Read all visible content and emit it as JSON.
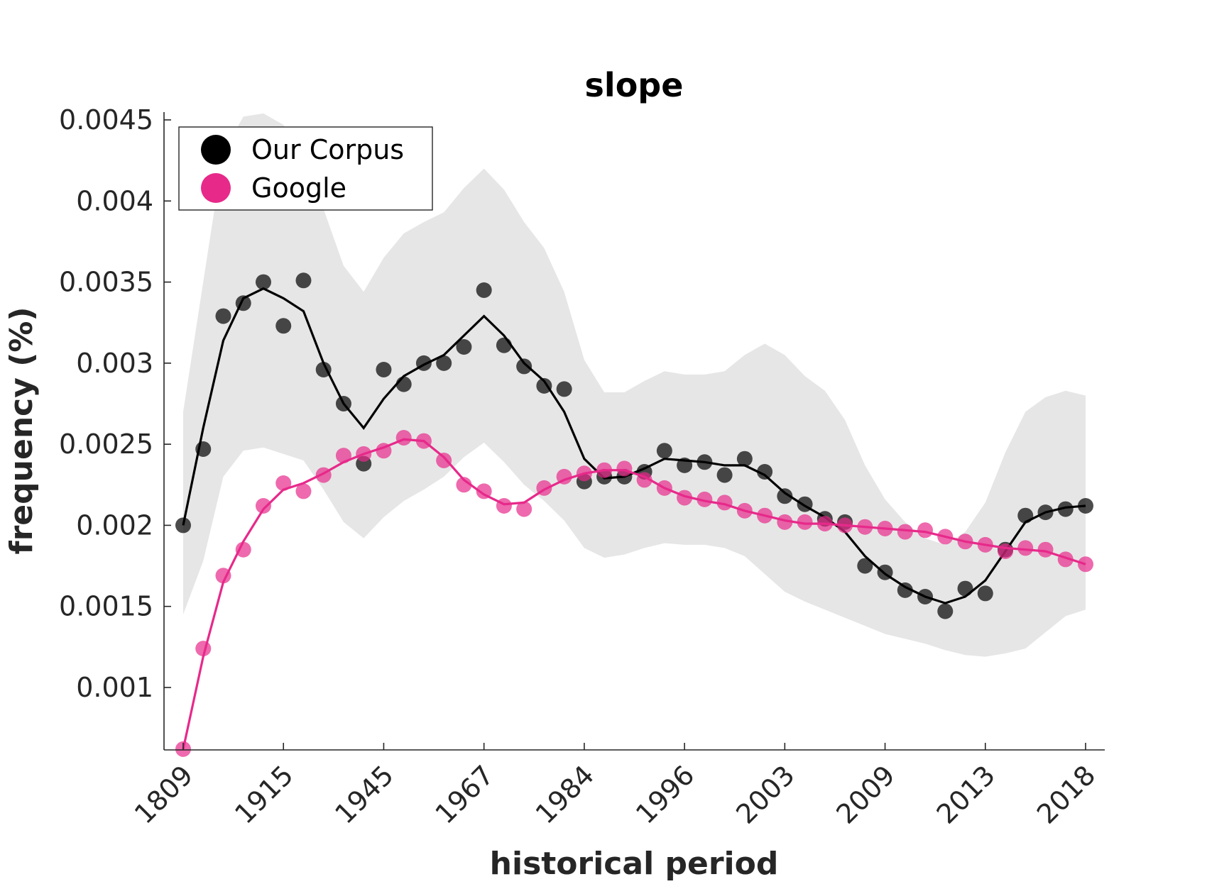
{
  "chart_data": {
    "type": "line",
    "title": "slope",
    "xlabel": "historical period",
    "ylabel": "frequency (%)",
    "x_tick_labels": [
      "1809",
      "1915",
      "1945",
      "1967",
      "1984",
      "1996",
      "2003",
      "2009",
      "2013",
      "2018"
    ],
    "y_tick_labels": [
      "0.001",
      "0.0015",
      "0.002",
      "0.0025",
      "0.003",
      "0.0035",
      "0.004",
      "0.0045"
    ],
    "ylim": [
      0.00062,
      0.00452
    ],
    "grid": false,
    "legend_position": "top-left",
    "colors": {
      "our_corpus": "#000000",
      "google": "#e7298a",
      "band": "#e6e6e6"
    },
    "series": [
      {
        "name": "Our Corpus",
        "points": [
          0.002,
          0.00247,
          0.00329,
          0.00337,
          0.0035,
          0.00323,
          0.00351,
          0.00296,
          0.00275,
          0.00238,
          0.00296,
          0.00287,
          0.003,
          0.003,
          0.0031,
          0.00345,
          0.00311,
          0.00298,
          0.00286,
          0.00284,
          0.00227,
          0.0023,
          0.0023,
          0.00233,
          0.00246,
          0.00237,
          0.00239,
          0.00231,
          0.00241,
          0.00233,
          0.00218,
          0.00213,
          0.00204,
          0.00202,
          0.00175,
          0.00171,
          0.0016,
          0.00156,
          0.00147,
          0.00161,
          0.00158,
          0.00185,
          0.00206,
          0.00208,
          0.0021,
          0.00212
        ],
        "smoothed": [
          0.002,
          0.0026,
          0.00314,
          0.0034,
          0.00346,
          0.0034,
          0.00332,
          0.003,
          0.00275,
          0.0026,
          0.00278,
          0.00292,
          0.00299,
          0.00305,
          0.00317,
          0.00329,
          0.00317,
          0.003,
          0.00289,
          0.0027,
          0.00241,
          0.00229,
          0.0023,
          0.00235,
          0.00241,
          0.0024,
          0.00239,
          0.00237,
          0.00237,
          0.00231,
          0.0022,
          0.00212,
          0.00205,
          0.00196,
          0.00181,
          0.0017,
          0.00162,
          0.00156,
          0.00152,
          0.00156,
          0.00166,
          0.00184,
          0.00202,
          0.00208,
          0.00211,
          0.00212
        ],
        "band_upper": [
          0.0027,
          0.0035,
          0.0043,
          0.00452,
          0.00454,
          0.00447,
          0.00425,
          0.00395,
          0.0036,
          0.00344,
          0.00365,
          0.0038,
          0.00387,
          0.00393,
          0.00408,
          0.0042,
          0.00407,
          0.00387,
          0.00371,
          0.00344,
          0.00302,
          0.00282,
          0.00282,
          0.00289,
          0.00295,
          0.00293,
          0.00293,
          0.00295,
          0.00305,
          0.00312,
          0.00305,
          0.00292,
          0.00283,
          0.00265,
          0.00237,
          0.00216,
          0.00202,
          0.00192,
          0.00188,
          0.00196,
          0.00214,
          0.00245,
          0.0027,
          0.00279,
          0.00283,
          0.0028
        ],
        "band_lower": [
          0.00145,
          0.00178,
          0.0023,
          0.00246,
          0.00248,
          0.00244,
          0.0024,
          0.00222,
          0.00202,
          0.00192,
          0.00205,
          0.00215,
          0.00222,
          0.0023,
          0.00242,
          0.00251,
          0.00239,
          0.00225,
          0.00215,
          0.00203,
          0.00186,
          0.0018,
          0.00182,
          0.00186,
          0.00189,
          0.00188,
          0.00188,
          0.00186,
          0.00181,
          0.0017,
          0.00159,
          0.00153,
          0.00148,
          0.00143,
          0.00138,
          0.00133,
          0.0013,
          0.00127,
          0.00123,
          0.0012,
          0.00119,
          0.00121,
          0.00124,
          0.00134,
          0.00144,
          0.00148
        ]
      },
      {
        "name": "Google",
        "points": [
          0.00062,
          0.00124,
          0.00169,
          0.00185,
          0.00212,
          0.00226,
          0.00221,
          0.00231,
          0.00243,
          0.00244,
          0.00246,
          0.00254,
          0.00252,
          0.0024,
          0.00225,
          0.00221,
          0.00212,
          0.0021,
          0.00223,
          0.0023,
          0.00232,
          0.00234,
          0.00235,
          0.00228,
          0.00223,
          0.00217,
          0.00216,
          0.00214,
          0.00209,
          0.00206,
          0.00202,
          0.00202,
          0.00201,
          0.002,
          0.00199,
          0.00198,
          0.00196,
          0.00197,
          0.00193,
          0.0019,
          0.00188,
          0.00184,
          0.00186,
          0.00185,
          0.00179,
          0.00176
        ],
        "smoothed": [
          0.00062,
          0.00119,
          0.00165,
          0.0019,
          0.0021,
          0.00222,
          0.00226,
          0.00232,
          0.00239,
          0.00244,
          0.00248,
          0.00253,
          0.00252,
          0.00242,
          0.00228,
          0.00219,
          0.00213,
          0.00214,
          0.00222,
          0.00228,
          0.00232,
          0.00234,
          0.00234,
          0.0023,
          0.00223,
          0.00218,
          0.00215,
          0.00213,
          0.00209,
          0.00206,
          0.00203,
          0.00201,
          0.00201,
          0.002,
          0.00199,
          0.00198,
          0.00197,
          0.00196,
          0.00193,
          0.0019,
          0.00188,
          0.00186,
          0.00185,
          0.00184,
          0.0018,
          0.00176
        ]
      }
    ]
  }
}
